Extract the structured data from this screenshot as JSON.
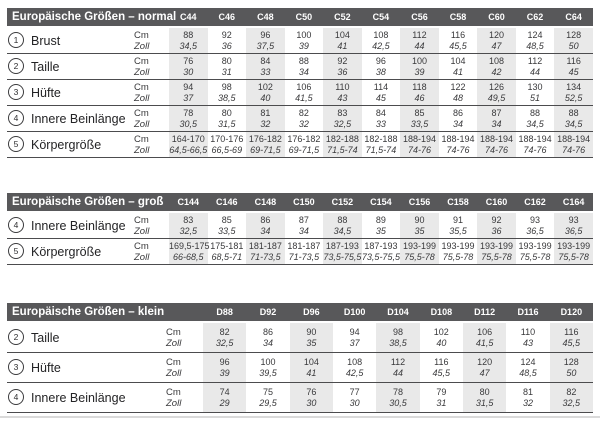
{
  "page": {
    "background": "#ffffff",
    "header_bar_color": "#58585a",
    "column_shade_color": "#e9e9e9",
    "rule_color": "#4c4c4e",
    "bottom_divider_color": "#dadada",
    "unit_cm_label": "Cm",
    "unit_zoll_label": "Zoll"
  },
  "tables": [
    {
      "id": "normal",
      "title": "Europäische Größen – normal",
      "columns": [
        "C44",
        "C46",
        "C48",
        "C50",
        "C52",
        "C54",
        "C56",
        "C58",
        "C60",
        "C62",
        "C64"
      ],
      "rows": [
        {
          "number": "1",
          "label": "Brust",
          "cm": [
            "88",
            "92",
            "96",
            "100",
            "104",
            "108",
            "112",
            "116",
            "120",
            "124",
            "128"
          ],
          "zoll": [
            "34,5",
            "36",
            "37,5",
            "39",
            "41",
            "42,5",
            "44",
            "45,5",
            "47",
            "48,5",
            "50"
          ]
        },
        {
          "number": "2",
          "label": "Taille",
          "cm": [
            "76",
            "80",
            "84",
            "88",
            "92",
            "96",
            "100",
            "104",
            "108",
            "112",
            "116"
          ],
          "zoll": [
            "30",
            "31",
            "33",
            "34",
            "36",
            "38",
            "39",
            "41",
            "42",
            "44",
            "45"
          ]
        },
        {
          "number": "3",
          "label": "Hüfte",
          "cm": [
            "94",
            "98",
            "102",
            "106",
            "110",
            "114",
            "118",
            "122",
            "126",
            "130",
            "134"
          ],
          "zoll": [
            "37",
            "38,5",
            "40",
            "41,5",
            "43",
            "45",
            "46",
            "48",
            "49,5",
            "51",
            "52,5"
          ]
        },
        {
          "number": "4",
          "label": "Innere Beinlänge",
          "cm": [
            "78",
            "80",
            "81",
            "82",
            "83",
            "84",
            "85",
            "86",
            "87",
            "88",
            "88"
          ],
          "zoll": [
            "30,5",
            "31,5",
            "32",
            "32",
            "32,5",
            "33",
            "33,5",
            "34",
            "34",
            "34,5",
            "34,5"
          ]
        },
        {
          "number": "5",
          "label": "Körpergröße",
          "cm": [
            "164-170",
            "170-176",
            "176-182",
            "176-182",
            "182-188",
            "182-188",
            "188-194",
            "188-194",
            "188-194",
            "188-194",
            "188-194"
          ],
          "zoll": [
            "64,5-66,5",
            "66,5-69",
            "69-71,5",
            "69-71,5",
            "71,5-74",
            "71,5-74",
            "74-76",
            "74-76",
            "74-76",
            "74-76",
            "74-76"
          ]
        }
      ]
    },
    {
      "id": "gross",
      "title": "Europäische Größen – groß",
      "columns": [
        "C144",
        "C146",
        "C148",
        "C150",
        "C152",
        "C154",
        "C156",
        "C158",
        "C160",
        "C162",
        "C164"
      ],
      "rows": [
        {
          "number": "4",
          "label": "Innere Beinlänge",
          "cm": [
            "83",
            "85",
            "86",
            "87",
            "88",
            "89",
            "90",
            "91",
            "92",
            "93",
            "93"
          ],
          "zoll": [
            "32,5",
            "33,5",
            "34",
            "34",
            "34,5",
            "35",
            "35",
            "35,5",
            "36",
            "36,5",
            "36,5"
          ]
        },
        {
          "number": "5",
          "label": "Körpergröße",
          "cm": [
            "169,5-175",
            "175-181",
            "181-187",
            "181-187",
            "187-193",
            "187-193",
            "193-199",
            "193-199",
            "193-199",
            "193-199",
            "193-199"
          ],
          "zoll": [
            "66-68,5",
            "68,5-71",
            "71-73,5",
            "71-73,5",
            "73,5-75,5",
            "73,5-75,5",
            "75,5-78",
            "75,5-78",
            "75,5-78",
            "75,5-78",
            "75,5-78"
          ]
        }
      ]
    },
    {
      "id": "klein",
      "title": "Europäische Größen – klein",
      "columns": [
        "D88",
        "D92",
        "D96",
        "D100",
        "D104",
        "D108",
        "D112",
        "D116",
        "D120"
      ],
      "rows": [
        {
          "number": "2",
          "label": "Taille",
          "cm": [
            "82",
            "86",
            "90",
            "94",
            "98",
            "102",
            "106",
            "110",
            "116"
          ],
          "zoll": [
            "32,5",
            "34",
            "35",
            "37",
            "38,5",
            "40",
            "41,5",
            "43",
            "45,5"
          ]
        },
        {
          "number": "3",
          "label": "Hüfte",
          "cm": [
            "96",
            "100",
            "104",
            "108",
            "112",
            "116",
            "120",
            "124",
            "128"
          ],
          "zoll": [
            "39",
            "39,5",
            "41",
            "42,5",
            "44",
            "45,5",
            "47",
            "48,5",
            "50"
          ]
        },
        {
          "number": "4",
          "label": "Innere Beinlänge",
          "cm": [
            "74",
            "75",
            "76",
            "77",
            "78",
            "79",
            "80",
            "81",
            "82"
          ],
          "zoll": [
            "29",
            "29,5",
            "30",
            "30",
            "30,5",
            "31",
            "31,5",
            "32",
            "32,5"
          ]
        }
      ]
    }
  ]
}
